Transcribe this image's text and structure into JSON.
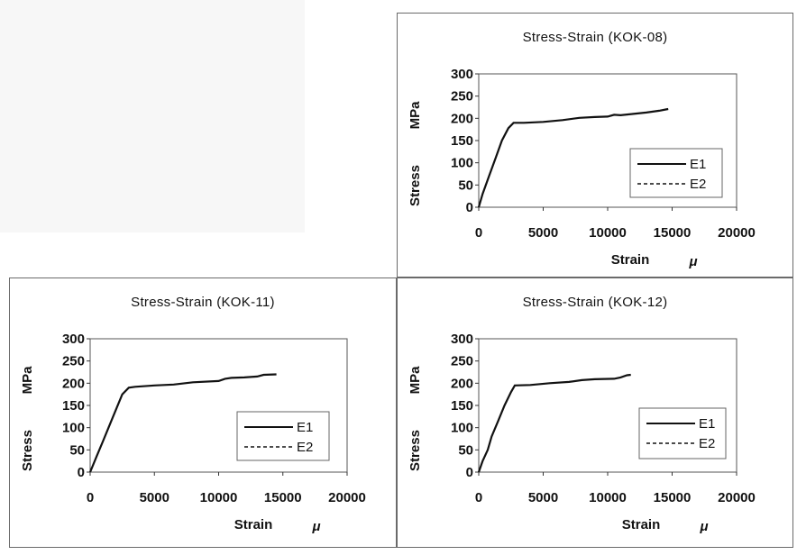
{
  "chart_data": [
    {
      "id": "kok-08",
      "type": "line",
      "title": "Stress-Strain (KOK-08)",
      "xlabel": "Strain",
      "xlabel_unit": "μ",
      "ylabel": "Stress",
      "ylabel_unit": "MPa",
      "xlim": [
        0,
        20000
      ],
      "ylim": [
        0,
        300
      ],
      "xticks": [
        "0",
        "5000",
        "10000",
        "15000",
        "20000"
      ],
      "yticks": [
        "0",
        "50",
        "100",
        "150",
        "200",
        "250",
        "300"
      ],
      "legend_position": "right",
      "series": [
        {
          "name": "E1",
          "style": "solid",
          "x": [
            0,
            300,
            800,
            1300,
            1800,
            2300,
            2700,
            3500,
            5000,
            6500,
            7800,
            9000,
            10000,
            10500,
            11000,
            12000,
            13000,
            14000,
            14500,
            14700
          ],
          "y": [
            0,
            30,
            70,
            110,
            150,
            178,
            190,
            190,
            192,
            196,
            201,
            203,
            204,
            208,
            207,
            210,
            213,
            217,
            220,
            221
          ]
        },
        {
          "name": "E2",
          "style": "dashed",
          "x": [],
          "y": []
        }
      ]
    },
    {
      "id": "kok-11",
      "type": "line",
      "title": "Stress-Strain (KOK-11)",
      "xlabel": "Strain",
      "xlabel_unit": "μ",
      "ylabel": "Stress",
      "ylabel_unit": "MPa",
      "xlim": [
        0,
        20000
      ],
      "ylim": [
        0,
        300
      ],
      "xticks": [
        "0",
        "5000",
        "10000",
        "15000",
        "20000"
      ],
      "yticks": [
        "0",
        "50",
        "100",
        "150",
        "200",
        "250",
        "300"
      ],
      "legend_position": "right",
      "series": [
        {
          "name": "E1",
          "style": "solid",
          "x": [
            0,
            500,
            1000,
            1500,
            2000,
            2500,
            3000,
            3500,
            5000,
            6500,
            8000,
            10000,
            10500,
            11000,
            12000,
            13000,
            13500,
            14500
          ],
          "y": [
            0,
            35,
            70,
            105,
            140,
            175,
            190,
            192,
            195,
            197,
            202,
            205,
            210,
            212,
            213,
            215,
            219,
            220
          ]
        },
        {
          "name": "E2",
          "style": "dashed",
          "x": [],
          "y": []
        }
      ]
    },
    {
      "id": "kok-12",
      "type": "line",
      "title": "Stress-Strain (KOK-12)",
      "xlabel": "Strain",
      "xlabel_unit": "μ",
      "ylabel": "Stress",
      "ylabel_unit": "MPa",
      "xlim": [
        0,
        20000
      ],
      "ylim": [
        0,
        300
      ],
      "xticks": [
        "0",
        "5000",
        "10000",
        "15000",
        "20000"
      ],
      "yticks": [
        "0",
        "50",
        "100",
        "150",
        "200",
        "250",
        "300"
      ],
      "legend_position": "right",
      "series": [
        {
          "name": "E1",
          "style": "solid",
          "x": [
            0,
            300,
            700,
            1000,
            1500,
            2000,
            2500,
            2800,
            4000,
            5500,
            7000,
            8000,
            9000,
            10500,
            11000,
            11500,
            11800
          ],
          "y": [
            0,
            25,
            50,
            80,
            115,
            150,
            180,
            195,
            196,
            200,
            203,
            207,
            209,
            210,
            213,
            218,
            219
          ]
        },
        {
          "name": "E2",
          "style": "dashed",
          "x": [],
          "y": []
        }
      ]
    }
  ]
}
